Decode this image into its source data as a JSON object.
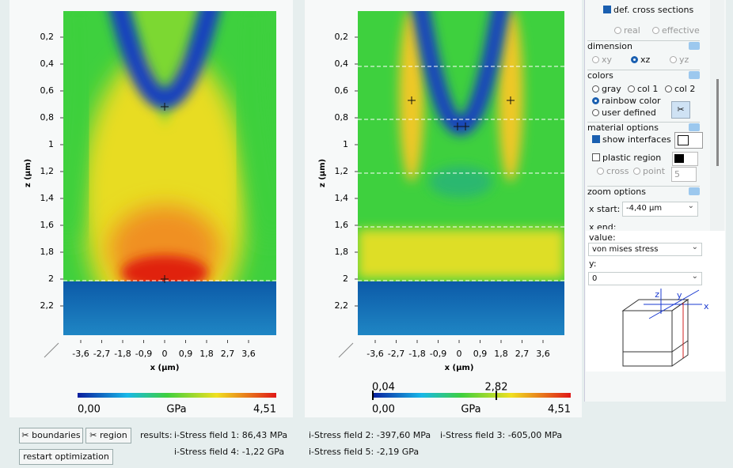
{
  "plots": [
    {
      "y_axis_label": "z (µm)",
      "x_axis_label": "x (µm)",
      "z_ticks": [
        "0,2",
        "0,4",
        "0,6",
        "0,8",
        "1",
        "1,2",
        "1,4",
        "1,6",
        "1,8",
        "2",
        "2,2"
      ],
      "x_ticks": [
        "-3,6",
        "-2,7",
        "-1,8",
        "-0,9",
        "0",
        "0,9",
        "1,8",
        "2,7",
        "3,6"
      ],
      "colorbar": {
        "min": "0,00",
        "unit": "GPa",
        "max": "4,51"
      }
    },
    {
      "y_axis_label": "z (µm)",
      "x_axis_label": "x (µm)",
      "z_ticks": [
        "0,2",
        "0,4",
        "0,6",
        "0,8",
        "1",
        "1,2",
        "1,4",
        "1,6",
        "1,8",
        "2",
        "2,2"
      ],
      "x_ticks": [
        "-3,6",
        "-2,7",
        "-1,8",
        "-0,9",
        "0",
        "0,9",
        "1,8",
        "2,7",
        "3,6"
      ],
      "colorbar": {
        "min": "0,00",
        "unit": "GPa",
        "max": "4,51",
        "range_low": "0,04",
        "range_high": "2,82"
      }
    }
  ],
  "options": {
    "cross_sections": "def. cross sections",
    "real": "real",
    "effective": "effective",
    "dimension": {
      "title": "dimension",
      "xy": "xy",
      "xz": "xz",
      "yz": "yz"
    },
    "colors": {
      "title": "colors",
      "gray": "gray",
      "col1": "col 1",
      "col2": "col 2",
      "rainbow": "rainbow color",
      "user": "user defined"
    },
    "material": {
      "title": "material options",
      "show_interfaces": "show interfaces",
      "plastic_region": "plastic region",
      "cross": "cross",
      "point": "point",
      "count": "5"
    },
    "zoom": {
      "title": "zoom options",
      "x_start_label": "x start:",
      "x_start": "-4,40 µm",
      "x_end_label": "x end:"
    },
    "value_label": "value:",
    "value": "von mises stress",
    "y_label": "y:",
    "y": "0",
    "cube": {
      "z": "z",
      "y": "y",
      "x": "x"
    }
  },
  "buttons": {
    "boundaries": "boundaries",
    "region": "region",
    "restart": "restart optimization"
  },
  "results": {
    "label": "results:",
    "items": [
      "i-Stress field 1: 86,43 MPa",
      "i-Stress field 2: -397,60 MPa",
      "i-Stress field 3: -605,00 MPa",
      "i-Stress field 4: -1,22 GPa",
      "i-Stress field 5: -2,19 GPa"
    ]
  }
}
